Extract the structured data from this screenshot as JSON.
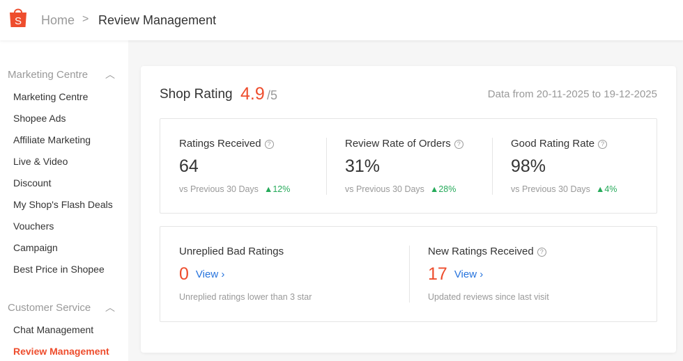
{
  "header": {
    "breadcrumb": [
      "Home",
      "Review Management"
    ],
    "brand_color": "#ee4d2d"
  },
  "sidebar": {
    "sections": [
      {
        "title": "Marketing Centre",
        "items": [
          "Marketing Centre",
          "Shopee Ads",
          "Affiliate Marketing",
          "Live & Video",
          "Discount",
          "My Shop's Flash Deals",
          "Vouchers",
          "Campaign",
          "Best Price in Shopee"
        ]
      },
      {
        "title": "Customer Service",
        "items": [
          "Chat Management",
          "Review Management"
        ],
        "active": "Review Management"
      }
    ]
  },
  "shop_rating": {
    "title": "Shop Rating",
    "value": "4.9",
    "out_of": "/5",
    "range": "Data from 20-11-2025 to 19-12-2025"
  },
  "metrics": [
    {
      "label": "Ratings Received",
      "value": "64",
      "compare": "vs Previous 30 Days",
      "change": "12%"
    },
    {
      "label": "Review Rate of Orders",
      "value": "31%",
      "compare": "vs Previous 30 Days",
      "change": "28%"
    },
    {
      "label": "Good Rating Rate",
      "value": "98%",
      "compare": "vs Previous 30 Days",
      "change": "4%"
    }
  ],
  "pending": [
    {
      "label": "Unreplied Bad Ratings",
      "value": "0",
      "link": "View",
      "desc": "Unreplied ratings lower than 3 star"
    },
    {
      "label": "New Ratings Received",
      "value": "17",
      "link": "View",
      "desc": "Updated reviews since last visit"
    }
  ]
}
